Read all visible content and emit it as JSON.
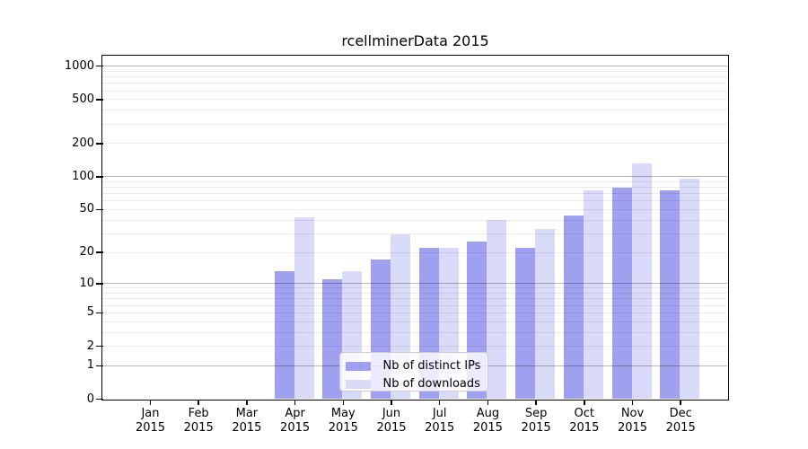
{
  "chart_data": {
    "type": "bar",
    "title": "rcellminerData 2015",
    "categories": [
      "Jan 2015",
      "Feb 2015",
      "Mar 2015",
      "Apr 2015",
      "May 2015",
      "Jun 2015",
      "Jul 2015",
      "Aug 2015",
      "Sep 2015",
      "Oct 2015",
      "Nov 2015",
      "Dec 2015"
    ],
    "series": [
      {
        "name": "Nb of distinct IPs",
        "color": "#a0a0f0",
        "values": [
          0,
          0,
          0,
          13,
          11,
          17,
          22,
          25,
          22,
          44,
          78,
          74
        ]
      },
      {
        "name": "Nb of downloads",
        "color": "#d9d9f8",
        "values": [
          0,
          0,
          0,
          42,
          13,
          29,
          22,
          40,
          33,
          74,
          130,
          95
        ]
      }
    ],
    "xlabel": "",
    "ylabel": "",
    "yscale": "log1p",
    "ylim": [
      0,
      1250
    ],
    "yticks": [
      0,
      1,
      2,
      5,
      10,
      20,
      50,
      100,
      200,
      500,
      1000
    ],
    "grid": true,
    "legend_position": "lower center"
  },
  "colors": {
    "axis": "#000000",
    "grid_minor": "rgba(0,0,0,0.08)",
    "grid_major": "rgba(0,0,0,0.28)",
    "legend_border": "#cccccc",
    "legend_background": "rgba(255,255,255,0.8)"
  }
}
